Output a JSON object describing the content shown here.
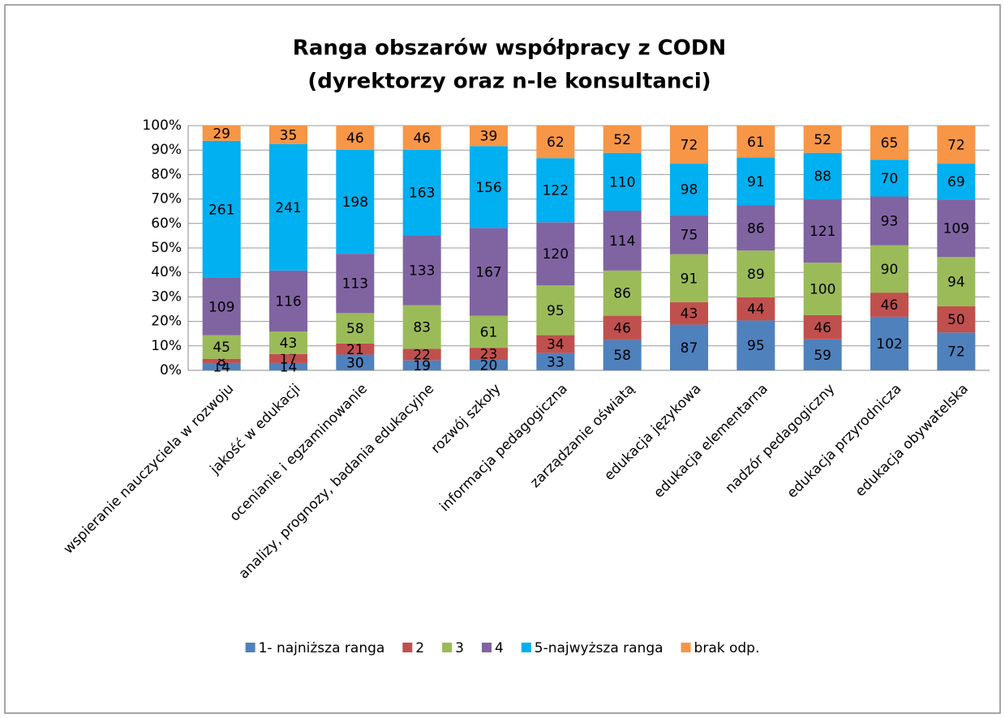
{
  "chart_data": {
    "type": "stacked_bar_100",
    "title": [
      "Ranga obszarów współpracy z CODN",
      "(dyrektorzy oraz n-le konsultanci)"
    ],
    "categories": [
      "wspieranie nauczyciela w rozwoju",
      "jakość w edukacji",
      "ocenianie i egzaminowanie",
      "analizy, prognozy, badania edukacyjne",
      "rozwój szkoły",
      "informacja pedagogiczna",
      "zarządzanie oświatą",
      "edukacja językowa",
      "edukacja elementarna",
      "nadzór pedagogiczny",
      "edukacja przyrodnicza",
      "edukacja obywatelska"
    ],
    "series": [
      {
        "name": "1- najniższa ranga",
        "color": "#4f81bd",
        "values": [
          14,
          14,
          30,
          19,
          20,
          33,
          58,
          87,
          95,
          59,
          102,
          72
        ]
      },
      {
        "name": "2",
        "color": "#c0504d",
        "values": [
          8,
          17,
          21,
          22,
          23,
          34,
          46,
          43,
          44,
          46,
          46,
          50
        ]
      },
      {
        "name": "3",
        "color": "#9bbb59",
        "values": [
          45,
          43,
          58,
          83,
          61,
          95,
          86,
          91,
          89,
          100,
          90,
          94
        ]
      },
      {
        "name": "4",
        "color": "#8064a2",
        "values": [
          109,
          116,
          113,
          133,
          167,
          120,
          114,
          75,
          86,
          121,
          93,
          109
        ]
      },
      {
        "name": "5-najwyższa ranga",
        "color": "#00b0f0",
        "values": [
          261,
          241,
          198,
          163,
          156,
          122,
          110,
          98,
          91,
          88,
          70,
          69
        ]
      },
      {
        "name": "brak odp.",
        "color": "#f79646",
        "values": [
          29,
          35,
          46,
          46,
          39,
          62,
          52,
          72,
          61,
          52,
          65,
          72
        ]
      }
    ],
    "ylim": [
      0,
      100
    ],
    "yticks": [
      {
        "value": 0,
        "label": "0%"
      },
      {
        "value": 10,
        "label": "10%"
      },
      {
        "value": 20,
        "label": "20%"
      },
      {
        "value": 30,
        "label": "30%"
      },
      {
        "value": 40,
        "label": "40%"
      },
      {
        "value": 50,
        "label": "50%"
      },
      {
        "value": 60,
        "label": "60%"
      },
      {
        "value": 70,
        "label": "70%"
      },
      {
        "value": 80,
        "label": "80%"
      },
      {
        "value": 90,
        "label": "90%"
      },
      {
        "value": 100,
        "label": "100%"
      }
    ],
    "grid": true,
    "legend": "bottom"
  }
}
